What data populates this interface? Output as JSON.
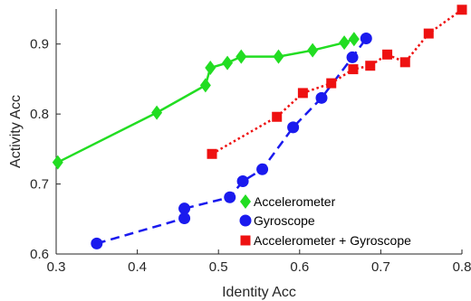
{
  "chart_data": {
    "type": "line",
    "xlabel": "Identity Acc",
    "ylabel": "Activity Acc",
    "xlim": [
      0.3,
      0.8
    ],
    "ylim": [
      0.6,
      0.95
    ],
    "xticks": [
      "0.3",
      "0.4",
      "0.5",
      "0.6",
      "0.7",
      "0.8"
    ],
    "yticks": [
      "0.6",
      "0.7",
      "0.8",
      "0.9"
    ],
    "grid": false,
    "legend_position": "bottom-center",
    "series": [
      {
        "name": "Accelerometer",
        "color": "#22dd22",
        "line_style": "solid",
        "marker": "diamond",
        "points": [
          [
            0.302,
            0.731
          ],
          [
            0.424,
            0.802
          ],
          [
            0.484,
            0.841
          ],
          [
            0.49,
            0.866
          ],
          [
            0.511,
            0.873
          ],
          [
            0.528,
            0.882
          ],
          [
            0.574,
            0.882
          ],
          [
            0.616,
            0.891
          ],
          [
            0.655,
            0.902
          ],
          [
            0.667,
            0.907
          ]
        ]
      },
      {
        "name": "Gyroscope",
        "color": "#1a1aee",
        "line_style": "dashed",
        "marker": "circle",
        "points": [
          [
            0.35,
            0.615
          ],
          [
            0.458,
            0.651
          ],
          [
            0.458,
            0.665
          ],
          [
            0.514,
            0.681
          ],
          [
            0.53,
            0.704
          ],
          [
            0.554,
            0.721
          ],
          [
            0.592,
            0.781
          ],
          [
            0.627,
            0.823
          ],
          [
            0.665,
            0.881
          ],
          [
            0.682,
            0.908
          ]
        ]
      },
      {
        "name": "Accelerometer + Gyroscope",
        "color": "#ee1111",
        "line_style": "dotted",
        "marker": "square",
        "points": [
          [
            0.492,
            0.743
          ],
          [
            0.572,
            0.796
          ],
          [
            0.604,
            0.83
          ],
          [
            0.639,
            0.844
          ],
          [
            0.666,
            0.864
          ],
          [
            0.687,
            0.869
          ],
          [
            0.708,
            0.885
          ],
          [
            0.73,
            0.874
          ],
          [
            0.759,
            0.915
          ],
          [
            0.8,
            0.949
          ]
        ]
      }
    ]
  }
}
